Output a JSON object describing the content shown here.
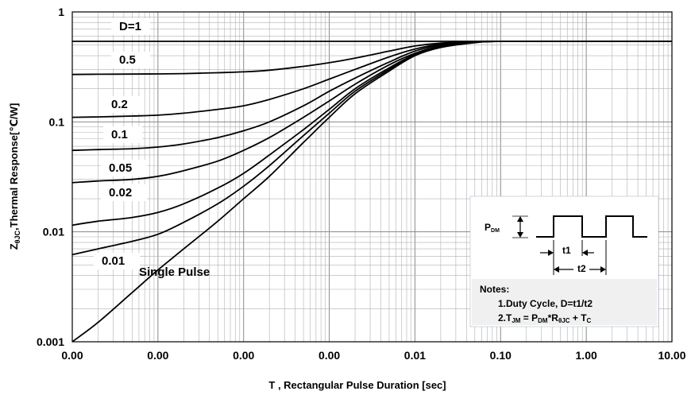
{
  "chart_data": {
    "type": "line",
    "xlabel": "T , Rectangular Pulse Duration [sec]",
    "ylabel": "ZθJC,Thermal Response[℃/W]",
    "ylabel_parts": {
      "main": "Z",
      "sub": "θJC",
      "rest": ",Thermal Response[℃/W]"
    },
    "x_scale": "log",
    "y_scale": "log",
    "xlim": [
      1e-06,
      10
    ],
    "ylim": [
      0.001,
      1
    ],
    "grid": true,
    "x_ticks": [
      {
        "value": 1e-06,
        "label": "0.00"
      },
      {
        "value": 1e-05,
        "label": "0.00"
      },
      {
        "value": 0.0001,
        "label": "0.00"
      },
      {
        "value": 0.001,
        "label": "0.00"
      },
      {
        "value": 0.01,
        "label": "0.01"
      },
      {
        "value": 0.1,
        "label": "0.10"
      },
      {
        "value": 1,
        "label": "1.00"
      },
      {
        "value": 10,
        "label": "10.00"
      }
    ],
    "y_ticks": [
      {
        "value": 1,
        "label": "1"
      },
      {
        "value": 0.1,
        "label": "0.1"
      },
      {
        "value": 0.01,
        "label": "0.01"
      },
      {
        "value": 0.001,
        "label": "0.001"
      }
    ],
    "x": [
      1e-06,
      2e-06,
      5e-06,
      1e-05,
      2e-05,
      5e-05,
      0.0001,
      0.0002,
      0.0005,
      0.001,
      0.002,
      0.005,
      0.01,
      0.02,
      0.05,
      0.1,
      1,
      10
    ],
    "series": [
      {
        "name": "D=1",
        "label": "D=1",
        "values": [
          0.54,
          0.54,
          0.54,
          0.54,
          0.54,
          0.54,
          0.54,
          0.54,
          0.54,
          0.54,
          0.54,
          0.54,
          0.54,
          0.54,
          0.54,
          0.54,
          0.54,
          0.54
        ]
      },
      {
        "name": "0.5",
        "label": "0.5",
        "values": [
          0.27,
          0.271,
          0.272,
          0.273,
          0.275,
          0.28,
          0.285,
          0.295,
          0.32,
          0.345,
          0.38,
          0.44,
          0.49,
          0.52,
          0.535,
          0.54,
          0.54,
          0.54
        ]
      },
      {
        "name": "0.2",
        "label": "0.2",
        "values": [
          0.11,
          0.111,
          0.113,
          0.115,
          0.12,
          0.13,
          0.14,
          0.16,
          0.2,
          0.245,
          0.3,
          0.39,
          0.46,
          0.51,
          0.535,
          0.54,
          0.54,
          0.54
        ]
      },
      {
        "name": "0.1",
        "label": "0.1",
        "values": [
          0.055,
          0.056,
          0.057,
          0.059,
          0.063,
          0.072,
          0.083,
          0.1,
          0.14,
          0.19,
          0.25,
          0.35,
          0.44,
          0.5,
          0.53,
          0.54,
          0.54,
          0.54
        ]
      },
      {
        "name": "0.05",
        "label": "0.05",
        "values": [
          0.028,
          0.029,
          0.03,
          0.032,
          0.036,
          0.044,
          0.055,
          0.072,
          0.11,
          0.155,
          0.22,
          0.33,
          0.42,
          0.49,
          0.53,
          0.54,
          0.54,
          0.54
        ]
      },
      {
        "name": "0.02",
        "label": "0.02",
        "values": [
          0.0115,
          0.0125,
          0.0135,
          0.015,
          0.018,
          0.025,
          0.034,
          0.05,
          0.085,
          0.13,
          0.2,
          0.31,
          0.41,
          0.485,
          0.53,
          0.54,
          0.54,
          0.54
        ]
      },
      {
        "name": "0.01",
        "label": "0.01",
        "values": [
          0.0062,
          0.007,
          0.0082,
          0.0095,
          0.0122,
          0.018,
          0.026,
          0.04,
          0.075,
          0.12,
          0.19,
          0.3,
          0.405,
          0.48,
          0.53,
          0.54,
          0.54,
          0.54
        ]
      },
      {
        "name": "Single Pulse",
        "label": "Single Pulse",
        "values": [
          0.001,
          0.0015,
          0.0028,
          0.0045,
          0.007,
          0.0125,
          0.02,
          0.032,
          0.065,
          0.11,
          0.18,
          0.29,
          0.4,
          0.475,
          0.525,
          0.54,
          0.54,
          0.54
        ]
      }
    ],
    "inset": {
      "pdm": {
        "main": "P",
        "sub": "DM"
      },
      "t1": "t1",
      "t2": "t2",
      "notes_title": "Notes:",
      "note1": "1.Duty  Cycle, D=t1/t2",
      "note2": {
        "prefix": "2.T",
        "sub1": "JM",
        "mid": " = P",
        "sub2": "DM",
        "mid2": "*R",
        "sub3": "θJC",
        "end": " + T",
        "sub4": "C"
      }
    },
    "colors": {
      "line": "#000000",
      "grid": "#b0b0b0",
      "inset_bg": "#f0f0f0"
    }
  }
}
